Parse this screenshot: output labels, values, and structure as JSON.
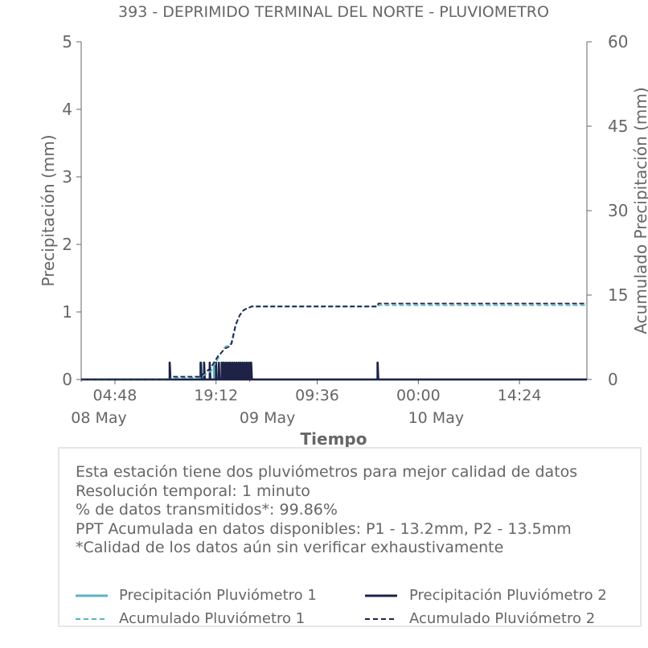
{
  "chart_data": {
    "type": "line",
    "title": "393 - DEPRIMIDO TERMINAL DEL NORTE - PLUVIOMETRO",
    "xlabel": "Tiempo",
    "ylabel": "Precipitación (mm)",
    "y2label": "Acumulado Precipitación (mm)",
    "ylim": [
      0,
      5
    ],
    "y2lim": [
      0,
      60
    ],
    "yticks": [
      "0",
      "1",
      "2",
      "3",
      "4",
      "5"
    ],
    "y2ticks": [
      "0",
      "15",
      "30",
      "45",
      "60"
    ],
    "x_tick_labels": [
      "04:48",
      "19:12",
      "09:36",
      "00:00",
      "14:24"
    ],
    "x_date_labels": [
      "08 May",
      "09 May",
      "10 May"
    ],
    "x_range_hours": [
      0,
      72
    ],
    "x_tick_hours": [
      4.8,
      19.2,
      33.6,
      48,
      62.4
    ],
    "x_date_hours": [
      0,
      24,
      48
    ],
    "series": [
      {
        "name": "Precipitación Pluviómetro 1",
        "color": "#5ab4c4",
        "style": "solid",
        "axis": "left",
        "points": [
          [
            0,
            0
          ],
          [
            12.6,
            0
          ],
          [
            12.6,
            0.25
          ],
          [
            12.7,
            0
          ],
          [
            17.1,
            0
          ],
          [
            17.1,
            0.25
          ],
          [
            17.2,
            0
          ],
          [
            18.9,
            0
          ],
          [
            18.9,
            0.25
          ],
          [
            19.0,
            0
          ],
          [
            20.2,
            0
          ],
          [
            20.2,
            0.25
          ],
          [
            20.3,
            0
          ],
          [
            21.0,
            0
          ],
          [
            21.0,
            0.25
          ],
          [
            21.1,
            0
          ],
          [
            22.5,
            0
          ],
          [
            22.5,
            0.25
          ],
          [
            22.6,
            0
          ],
          [
            24.1,
            0
          ],
          [
            24.1,
            0.25
          ],
          [
            24.2,
            0
          ],
          [
            42.2,
            0
          ],
          [
            42.2,
            0.25
          ],
          [
            42.3,
            0
          ],
          [
            72,
            0
          ]
        ]
      },
      {
        "name": "Precipitación Pluviómetro 2",
        "color": "#1f2247",
        "style": "solid",
        "axis": "left",
        "points": [
          [
            0,
            0
          ],
          [
            12.6,
            0
          ],
          [
            12.6,
            0.25
          ],
          [
            12.7,
            0
          ],
          [
            17.0,
            0
          ],
          [
            17.0,
            0.25
          ],
          [
            17.1,
            0
          ],
          [
            17.5,
            0
          ],
          [
            17.5,
            0.25
          ],
          [
            17.6,
            0
          ],
          [
            18.3,
            0
          ],
          [
            18.3,
            0.25
          ],
          [
            18.4,
            0
          ],
          [
            19.2,
            0
          ],
          [
            19.2,
            0.25
          ],
          [
            19.3,
            0
          ],
          [
            19.6,
            0
          ],
          [
            19.6,
            0.25
          ],
          [
            19.7,
            0
          ],
          [
            20.0,
            0
          ],
          [
            20.0,
            0.25
          ],
          [
            20.1,
            0
          ],
          [
            20.3,
            0
          ],
          [
            20.3,
            0.25
          ],
          [
            20.4,
            0
          ],
          [
            20.6,
            0
          ],
          [
            20.6,
            0.25
          ],
          [
            20.7,
            0
          ],
          [
            20.9,
            0
          ],
          [
            20.9,
            0.25
          ],
          [
            21.0,
            0
          ],
          [
            21.2,
            0
          ],
          [
            21.2,
            0.25
          ],
          [
            21.3,
            0
          ],
          [
            21.5,
            0
          ],
          [
            21.5,
            0.25
          ],
          [
            21.6,
            0
          ],
          [
            21.8,
            0
          ],
          [
            21.8,
            0.25
          ],
          [
            21.9,
            0
          ],
          [
            22.1,
            0
          ],
          [
            22.1,
            0.25
          ],
          [
            22.2,
            0
          ],
          [
            22.4,
            0
          ],
          [
            22.4,
            0.25
          ],
          [
            22.5,
            0
          ],
          [
            22.7,
            0
          ],
          [
            22.7,
            0.25
          ],
          [
            22.8,
            0
          ],
          [
            23.0,
            0
          ],
          [
            23.0,
            0.25
          ],
          [
            23.1,
            0
          ],
          [
            23.3,
            0
          ],
          [
            23.3,
            0.25
          ],
          [
            23.4,
            0
          ],
          [
            23.6,
            0
          ],
          [
            23.6,
            0.25
          ],
          [
            23.7,
            0
          ],
          [
            23.9,
            0
          ],
          [
            23.9,
            0.25
          ],
          [
            24.0,
            0
          ],
          [
            24.2,
            0
          ],
          [
            24.2,
            0.25
          ],
          [
            24.3,
            0
          ],
          [
            42.2,
            0
          ],
          [
            42.2,
            0.25
          ],
          [
            42.3,
            0
          ],
          [
            72,
            0
          ]
        ]
      },
      {
        "name": "Acumulado Pluviómetro 1",
        "color": "#5ab4c4",
        "style": "dashed",
        "axis": "right",
        "points": [
          [
            0,
            0
          ],
          [
            12.6,
            0
          ],
          [
            12.7,
            0.3
          ],
          [
            17.0,
            0.3
          ],
          [
            17.1,
            0.5
          ],
          [
            18.5,
            1.5
          ],
          [
            19.5,
            3.8
          ],
          [
            20.5,
            5.8
          ],
          [
            21.5,
            6.5
          ],
          [
            22.0,
            9.5
          ],
          [
            22.5,
            11.2
          ],
          [
            23.0,
            12.2
          ],
          [
            24.2,
            12.9
          ],
          [
            42.2,
            12.9
          ],
          [
            42.3,
            13.2
          ],
          [
            72,
            13.2
          ]
        ]
      },
      {
        "name": "Acumulado Pluviómetro 2",
        "color": "#1f2247",
        "style": "dashed",
        "axis": "right",
        "points": [
          [
            0,
            0
          ],
          [
            12.6,
            0
          ],
          [
            12.7,
            0.5
          ],
          [
            17.0,
            0.5
          ],
          [
            17.2,
            0.8
          ],
          [
            18.4,
            2.0
          ],
          [
            19.5,
            4.2
          ],
          [
            20.5,
            5.5
          ],
          [
            21.3,
            6.0
          ],
          [
            22.0,
            9.8
          ],
          [
            22.6,
            11.5
          ],
          [
            23.2,
            12.4
          ],
          [
            24.3,
            13.0
          ],
          [
            42.2,
            13.0
          ],
          [
            42.3,
            13.5
          ],
          [
            72,
            13.5
          ]
        ]
      }
    ],
    "grid": false,
    "legend": "bottom"
  },
  "info": {
    "lines": [
      "Esta estación tiene dos pluviómetros para mejor calidad de datos",
      "Resolución temporal: 1 minuto",
      "% de datos transmitidos*: 99.86%",
      "PPT Acumulada en datos disponibles: P1 - 13.2mm, P2 - 13.5mm",
      "*Calidad de los datos aún sin verificar exhaustivamente"
    ]
  },
  "legend": {
    "items": [
      "Precipitación Pluviómetro 1",
      "Precipitación Pluviómetro 2",
      "Acumulado Pluviómetro 1",
      "Acumulado Pluviómetro 2"
    ]
  },
  "colors": {
    "pluviometro_1": "#5ab4c4",
    "pluviometro_2": "#1f2247",
    "axis": "#666666"
  }
}
